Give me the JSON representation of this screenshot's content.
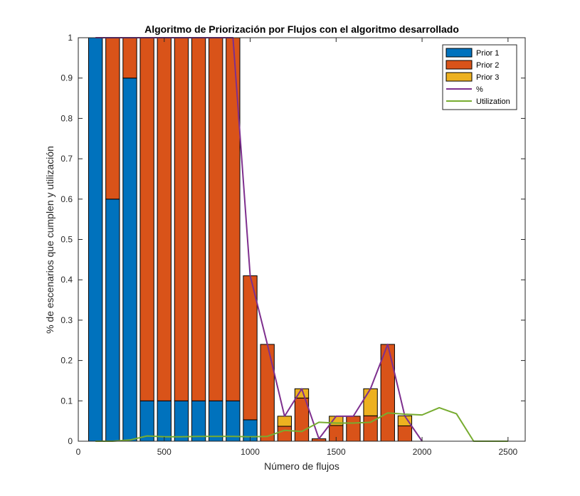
{
  "chart_data": {
    "type": "bar",
    "stacked": true,
    "title": "Algoritmo de Priorización por Flujos con el algoritmo desarrollado",
    "xlabel": "Número de flujos",
    "ylabel": "% de escenarios que cumplen y utilización",
    "xlim": [
      0,
      2600
    ],
    "ylim": [
      0,
      1
    ],
    "xticks": [
      0,
      500,
      1000,
      1500,
      2000,
      2500
    ],
    "yticks": [
      0,
      0.1,
      0.2,
      0.3,
      0.4,
      0.5,
      0.6,
      0.7,
      0.8,
      0.9,
      1
    ],
    "bar_width": 80,
    "legend_position": "top-right",
    "x": [
      100,
      200,
      300,
      400,
      500,
      600,
      700,
      800,
      900,
      1000,
      1100,
      1200,
      1300,
      1400,
      1500,
      1600,
      1700,
      1800,
      1900
    ],
    "series": [
      {
        "name": "Prior 1",
        "kind": "bar",
        "color": "#0072BD",
        "values": [
          1.0,
          0.6,
          0.9,
          0.1,
          0.1,
          0.1,
          0.1,
          0.1,
          0.1,
          0.053,
          0,
          0,
          0,
          0,
          0,
          0,
          0,
          0,
          0
        ]
      },
      {
        "name": "Prior 2",
        "kind": "bar",
        "color": "#D95319",
        "values": [
          0,
          0.4,
          0.1,
          0.9,
          0.9,
          0.9,
          0.9,
          0.9,
          0.9,
          0.357,
          0.24,
          0.037,
          0.107,
          0.006,
          0.039,
          0.062,
          0.063,
          0.24,
          0.038
        ]
      },
      {
        "name": "Prior 3",
        "kind": "bar",
        "color": "#EDB120",
        "values": [
          0,
          0,
          0,
          0,
          0,
          0,
          0,
          0,
          0,
          0,
          0,
          0.025,
          0.023,
          0,
          0.023,
          0,
          0.067,
          0,
          0.025
        ]
      }
    ],
    "lines": [
      {
        "name": "%",
        "color": "#7E2F8E",
        "x": [
          100,
          200,
          300,
          400,
          500,
          600,
          700,
          800,
          900,
          1000,
          1100,
          1200,
          1300,
          1400,
          1500,
          1600,
          1700,
          1800,
          1900,
          2000
        ],
        "y": [
          1,
          1,
          1,
          1,
          1,
          1,
          1,
          1,
          1,
          0.41,
          0.24,
          0.062,
          0.13,
          0.006,
          0.062,
          0.062,
          0.13,
          0.24,
          0.062,
          0
        ]
      },
      {
        "name": "Utilization",
        "color": "#77AC30",
        "x": [
          100,
          200,
          300,
          400,
          500,
          600,
          700,
          800,
          900,
          1000,
          1100,
          1200,
          1300,
          1400,
          1500,
          1600,
          1700,
          1800,
          1900,
          2000,
          2100,
          2200,
          2300,
          2400,
          2500
        ],
        "y": [
          0,
          0,
          0.003,
          0.013,
          0.011,
          0.011,
          0.012,
          0.012,
          0.012,
          0.011,
          0.012,
          0.027,
          0.024,
          0.047,
          0.045,
          0.045,
          0.047,
          0.07,
          0.067,
          0.065,
          0.083,
          0.068,
          0,
          0,
          0
        ]
      }
    ]
  }
}
